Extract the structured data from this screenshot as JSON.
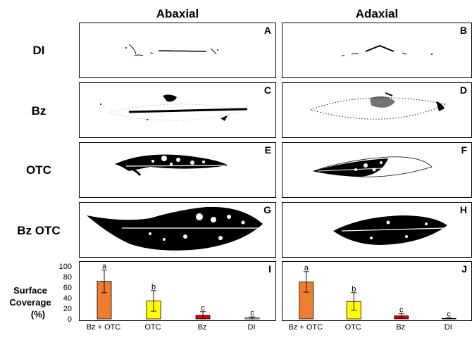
{
  "columns": [
    "Abaxial",
    "Adaxial"
  ],
  "rows": [
    "DI",
    "Bz",
    "OTC",
    "Bz OTC"
  ],
  "panel_letters": [
    "A",
    "B",
    "C",
    "D",
    "E",
    "F",
    "G",
    "H"
  ],
  "chart_letters": [
    "I",
    "J"
  ],
  "y_axis_label": [
    "Surface",
    "Coverage",
    "(%)"
  ],
  "colors": {
    "orange": "#ED7D31",
    "yellow": "#FFFF00",
    "red": "#E00000",
    "white": "#FFFFFF"
  },
  "chart_data": [
    {
      "type": "bar",
      "panel": "I",
      "categories": [
        "Bz + OTC",
        "OTC",
        "Bz",
        "DI"
      ],
      "values": [
        73,
        35,
        7,
        2
      ],
      "error": [
        22,
        20,
        7,
        2
      ],
      "letters": [
        "a",
        "b",
        "c",
        "c"
      ],
      "bar_colors": [
        "#ED7D31",
        "#FFFF00",
        "#E00000",
        "#FFFFFF"
      ],
      "yticks": [
        0,
        20,
        40,
        60,
        80,
        100
      ],
      "ylim": [
        0,
        100
      ],
      "ylabel": "Surface Coverage (%)"
    },
    {
      "type": "bar",
      "panel": "J",
      "categories": [
        "Bz + OTC",
        "OTC",
        "Bz",
        "DI"
      ],
      "values": [
        72,
        34,
        6,
        1
      ],
      "error": [
        20,
        17,
        4,
        1
      ],
      "letters": [
        "a",
        "b",
        "c",
        "c"
      ],
      "bar_colors": [
        "#ED7D31",
        "#FFFF00",
        "#E00000",
        "#FFFFFF"
      ],
      "yticks": [
        0,
        20,
        40,
        60,
        80,
        100
      ],
      "ylim": [
        0,
        100
      ],
      "ylabel": "Surface Coverage (%)"
    }
  ]
}
